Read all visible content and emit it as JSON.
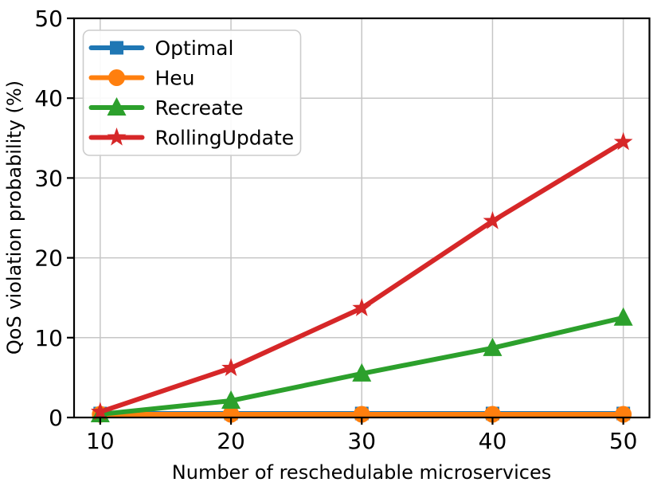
{
  "chart_data": {
    "type": "line",
    "title": "",
    "xlabel": "Number of reschedulable microservices",
    "ylabel": "QoS violation probability (%)",
    "x": [
      10,
      20,
      30,
      40,
      50
    ],
    "xlim": [
      8,
      52
    ],
    "ylim": [
      0,
      50
    ],
    "xticks": [
      10,
      20,
      30,
      40,
      50
    ],
    "yticks": [
      0,
      10,
      20,
      30,
      40,
      50
    ],
    "grid": true,
    "grid_color": "#c6c6c6",
    "legend_position": "upper-left",
    "series": [
      {
        "name": "Optimal",
        "color": "#1f77b4",
        "marker": "square",
        "values": [
          0.5,
          0.5,
          0.5,
          0.5,
          0.5
        ]
      },
      {
        "name": "Heu",
        "color": "#ff7f0e",
        "marker": "circle",
        "values": [
          0.4,
          0.4,
          0.4,
          0.4,
          0.4
        ]
      },
      {
        "name": "Recreate",
        "color": "#2ca02c",
        "marker": "triangle",
        "values": [
          0.4,
          2.1,
          5.5,
          8.7,
          12.5
        ]
      },
      {
        "name": "RollingUpdate",
        "color": "#d62728",
        "marker": "star",
        "values": [
          0.7,
          6.2,
          13.7,
          24.6,
          34.5
        ]
      }
    ]
  }
}
